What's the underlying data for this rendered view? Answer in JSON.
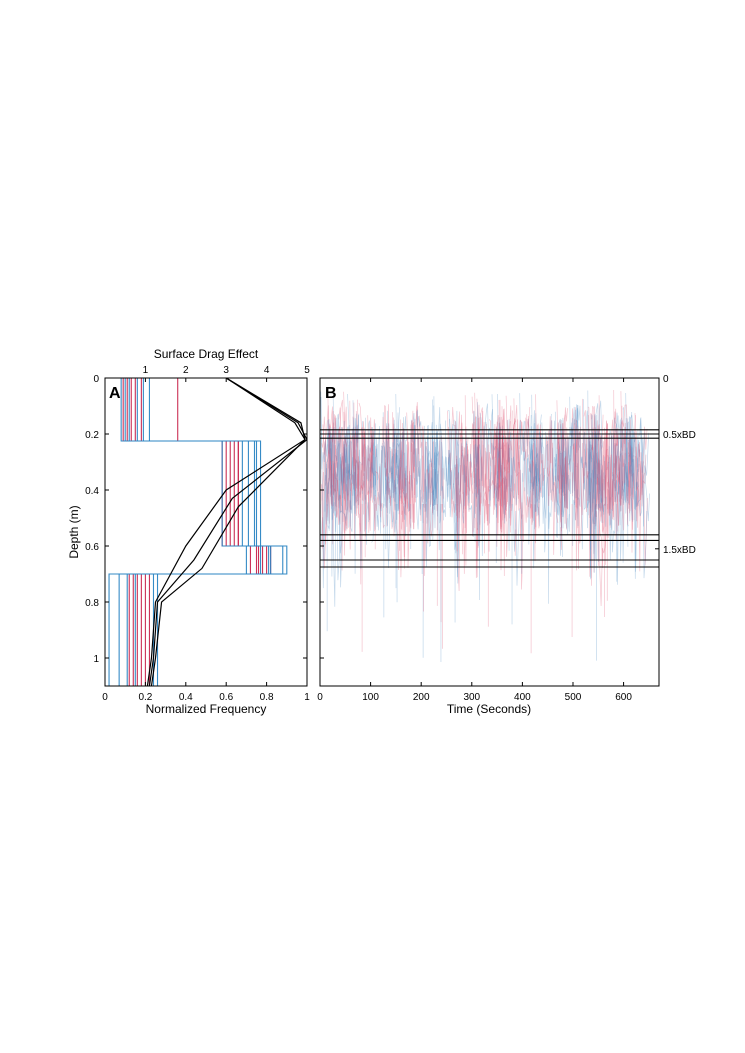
{
  "chart_data": [
    {
      "panel": "A",
      "type": "line",
      "xlabel": "Normalized Frequency",
      "top_xlabel": "Surface Drag Effect",
      "ylabel": "Depth (m)",
      "xlim": [
        0,
        1
      ],
      "top_xlim": [
        0,
        5
      ],
      "ylim": [
        1.1,
        0
      ],
      "xticks": [
        0,
        0.2,
        0.4,
        0.6,
        0.8,
        1
      ],
      "xtick_labels": [
        "0",
        "0.2",
        "0.4",
        "0.6",
        "0.8",
        "1"
      ],
      "top_xticks": [
        1,
        2,
        3,
        4,
        5
      ],
      "top_xtick_labels": [
        "1",
        "2",
        "3",
        "4",
        "5"
      ],
      "yticks": [
        0,
        0.2,
        0.4,
        0.6,
        0.8,
        1
      ],
      "ytick_labels": [
        "0",
        "0.2",
        "0.4",
        "0.6",
        "0.8",
        "1"
      ],
      "series_colors": {
        "red": "#c8254d",
        "blue": "#2b85c3",
        "drag": "#000000"
      },
      "histograms": [
        {
          "color": "red",
          "widths": [
            0.09,
            0.64,
            0.72,
            0.16
          ]
        },
        {
          "color": "red",
          "widths": [
            0.11,
            0.66,
            0.75,
            0.14
          ]
        },
        {
          "color": "red",
          "widths": [
            0.13,
            0.62,
            0.78,
            0.18
          ]
        },
        {
          "color": "red",
          "widths": [
            0.15,
            0.6,
            0.8,
            0.12
          ]
        },
        {
          "color": "red",
          "widths": [
            0.18,
            0.58,
            0.82,
            0.2
          ]
        },
        {
          "color": "red",
          "widths": [
            0.36,
            0.66,
            0.76,
            0.22
          ]
        },
        {
          "color": "blue",
          "widths": [
            0.08,
            0.58,
            0.77,
            0.11
          ]
        },
        {
          "color": "blue",
          "widths": [
            0.1,
            0.75,
            0.7,
            0.02
          ]
        },
        {
          "color": "blue",
          "widths": [
            0.12,
            0.71,
            0.82,
            0.07
          ]
        },
        {
          "color": "blue",
          "widths": [
            0.16,
            0.68,
            0.9,
            0.15
          ]
        },
        {
          "color": "blue",
          "widths": [
            0.22,
            0.77,
            0.81,
            0.26
          ]
        },
        {
          "color": "blue",
          "widths": [
            0.19,
            0.74,
            0.88,
            0.24
          ]
        }
      ],
      "bin_edges": [
        0,
        0.225,
        0.6,
        0.7,
        1.1
      ],
      "drag_curves": [
        {
          "drag": [
            3.0,
            4.7,
            4.95,
            3.0,
            2.0,
            1.25,
            1.15,
            1.05
          ],
          "depth": [
            0,
            0.16,
            0.22,
            0.4,
            0.6,
            0.8,
            1.0,
            1.1
          ]
        },
        {
          "drag": [
            3.0,
            4.78,
            5.0,
            3.15,
            2.2,
            1.3,
            1.2,
            1.1
          ],
          "depth": [
            0,
            0.16,
            0.22,
            0.43,
            0.65,
            0.8,
            1.0,
            1.1
          ]
        },
        {
          "drag": [
            3.0,
            4.85,
            4.95,
            3.3,
            2.4,
            1.4,
            1.25,
            1.15
          ],
          "depth": [
            0,
            0.16,
            0.22,
            0.46,
            0.68,
            0.8,
            1.0,
            1.1
          ]
        }
      ]
    },
    {
      "panel": "B",
      "type": "line",
      "xlabel": "Time (Seconds)",
      "xlim": [
        0,
        670
      ],
      "ylim": [
        1.1,
        0
      ],
      "xticks": [
        0,
        100,
        200,
        300,
        400,
        500,
        600
      ],
      "xtick_labels": [
        "0",
        "100",
        "200",
        "300",
        "400",
        "500",
        "600"
      ],
      "right_labels": [
        {
          "text": "0",
          "depth": 0
        },
        {
          "text": "0.5xBD",
          "depth": 0.2
        },
        {
          "text": "1.5xBD",
          "depth": 0.61
        }
      ],
      "boundary_depths": [
        0.185,
        0.2,
        0.215,
        0.56,
        0.58,
        0.65,
        0.675
      ],
      "trace_colors": {
        "red": "#dc4e6e",
        "blue": "#4b8ac2"
      },
      "trace_summary": {
        "time_range": [
          0,
          660
        ],
        "dense_depth_range": [
          0.05,
          0.55
        ],
        "max_depth": 1.02,
        "count_per_color": 160
      }
    }
  ]
}
